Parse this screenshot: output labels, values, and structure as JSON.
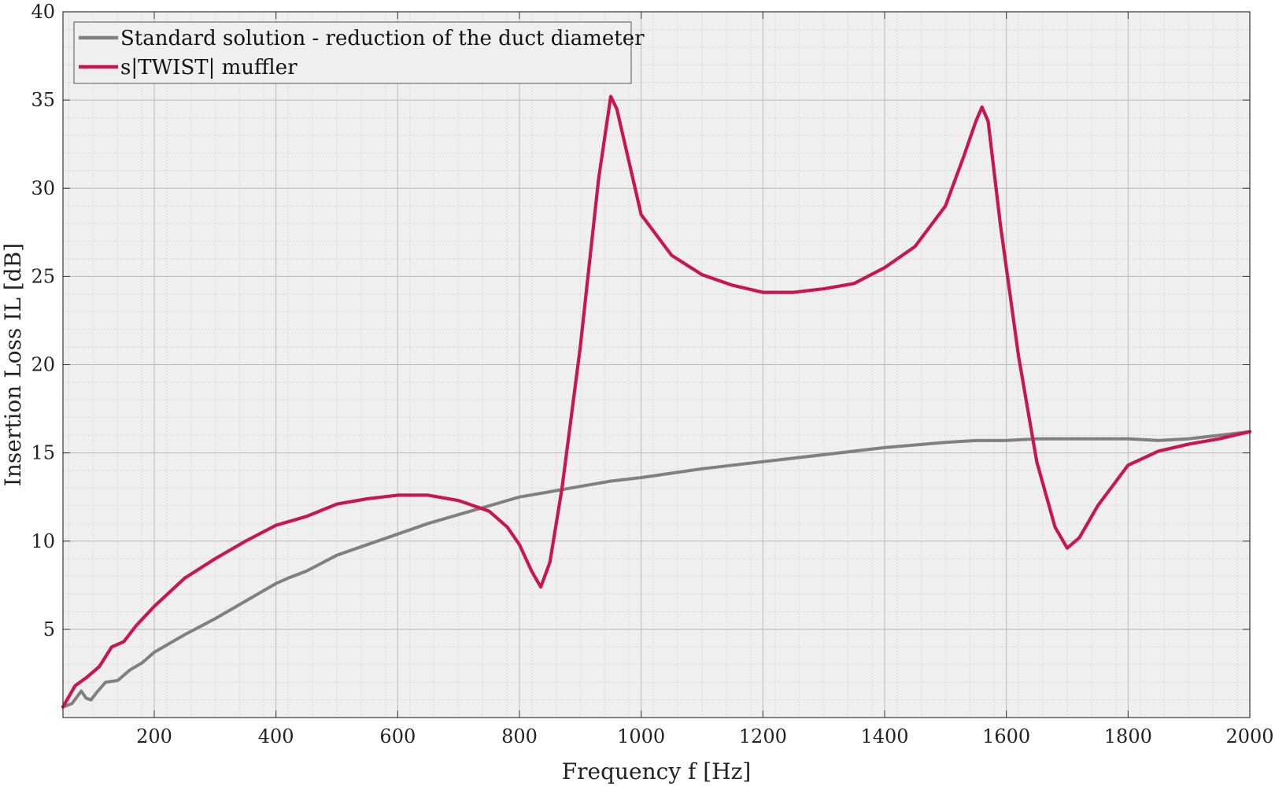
{
  "chart_data": {
    "type": "line",
    "xlabel": "Frequency  f [Hz]",
    "ylabel": "Insertion Loss  IL  [dB]",
    "xlim": [
      50,
      2000
    ],
    "ylim": [
      0,
      40
    ],
    "x_ticks": [
      200,
      400,
      600,
      800,
      1000,
      1200,
      1400,
      1600,
      1800,
      2000
    ],
    "y_ticks": [
      5,
      10,
      15,
      20,
      25,
      30,
      35,
      40
    ],
    "grid": "major and minor",
    "legend_position": "top-left",
    "series": [
      {
        "name": "Standard solution - reduction of the duct diameter",
        "color": "#808080",
        "x": [
          50,
          65,
          80,
          88,
          96,
          105,
          120,
          140,
          160,
          180,
          200,
          250,
          300,
          350,
          400,
          420,
          450,
          500,
          550,
          600,
          650,
          700,
          750,
          800,
          850,
          900,
          950,
          1000,
          1100,
          1200,
          1300,
          1400,
          1500,
          1550,
          1600,
          1650,
          1700,
          1800,
          1850,
          1900,
          2000
        ],
        "y": [
          0.6,
          0.8,
          1.5,
          1.1,
          1.0,
          1.4,
          2.0,
          2.1,
          2.7,
          3.1,
          3.7,
          4.7,
          5.6,
          6.6,
          7.6,
          7.9,
          8.3,
          9.2,
          9.8,
          10.4,
          11.0,
          11.5,
          12.0,
          12.5,
          12.8,
          13.1,
          13.4,
          13.6,
          14.1,
          14.5,
          14.9,
          15.3,
          15.6,
          15.7,
          15.7,
          15.8,
          15.8,
          15.8,
          15.7,
          15.8,
          16.2
        ]
      },
      {
        "name": "s|TWIST| muffler",
        "color": "#C8174E",
        "x": [
          50,
          70,
          90,
          110,
          130,
          150,
          170,
          200,
          250,
          300,
          350,
          400,
          450,
          500,
          550,
          600,
          650,
          700,
          750,
          780,
          800,
          820,
          835,
          850,
          870,
          900,
          930,
          950,
          960,
          980,
          1000,
          1050,
          1100,
          1150,
          1200,
          1250,
          1300,
          1350,
          1400,
          1450,
          1500,
          1530,
          1550,
          1560,
          1570,
          1590,
          1620,
          1650,
          1680,
          1700,
          1720,
          1750,
          1800,
          1850,
          1900,
          1950,
          2000
        ],
        "y": [
          0.6,
          1.8,
          2.3,
          2.9,
          4.0,
          4.3,
          5.2,
          6.3,
          7.9,
          9.0,
          10.0,
          10.9,
          11.4,
          12.1,
          12.4,
          12.6,
          12.6,
          12.3,
          11.7,
          10.8,
          9.8,
          8.3,
          7.4,
          8.8,
          13.0,
          21.0,
          30.5,
          35.2,
          34.5,
          31.5,
          28.5,
          26.2,
          25.1,
          24.5,
          24.1,
          24.1,
          24.3,
          24.6,
          25.5,
          26.7,
          29.0,
          31.8,
          33.8,
          34.6,
          33.8,
          28.0,
          20.5,
          14.5,
          10.8,
          9.6,
          10.2,
          12.0,
          14.3,
          15.1,
          15.5,
          15.8,
          16.2
        ]
      }
    ]
  }
}
